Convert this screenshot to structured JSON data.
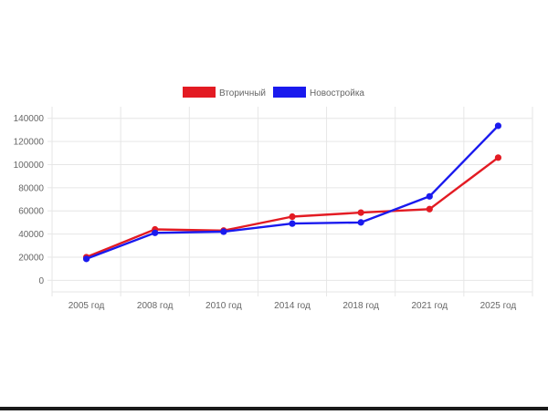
{
  "chart_data": {
    "type": "line",
    "categories": [
      "2005 год",
      "2008 год",
      "2010 год",
      "2014 год",
      "2018 год",
      "2021 год",
      "2025 год"
    ],
    "series": [
      {
        "name": "Вторичный",
        "color": "#e31b23",
        "values": [
          20000,
          44000,
          43000,
          55000,
          58500,
          61500,
          106000
        ]
      },
      {
        "name": "Новостройка",
        "color": "#1a1aee",
        "values": [
          18500,
          41000,
          42000,
          49000,
          50000,
          72500,
          133500
        ]
      }
    ],
    "yticks": [
      0,
      20000,
      40000,
      60000,
      80000,
      100000,
      120000,
      140000
    ],
    "ylim": [
      -10000,
      150000
    ],
    "grid": true,
    "legend_position": "top-center"
  }
}
